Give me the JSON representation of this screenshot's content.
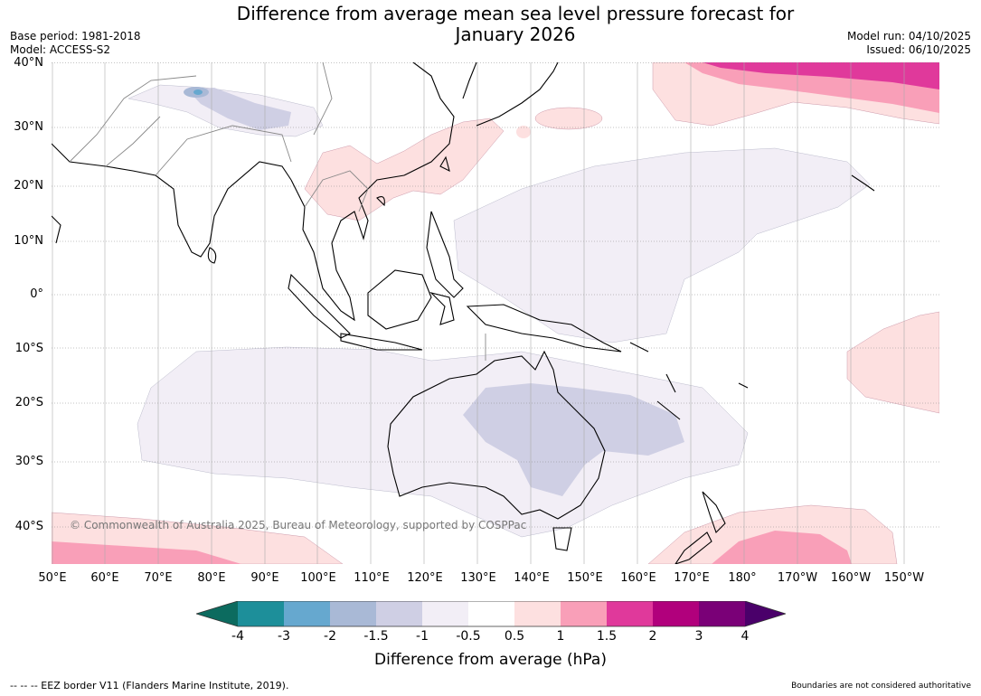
{
  "header": {
    "title_line1": "Difference from average mean sea level pressure forecast for",
    "title_line2": "January 2026",
    "base_period": "Base period: 1981-2018",
    "model": "Model: ACCESS-S2",
    "model_run": "Model run: 04/10/2025",
    "issued": "Issued: 06/10/2025"
  },
  "map": {
    "lat_labels": [
      "40°N",
      "30°N",
      "20°N",
      "10°N",
      "0°",
      "10°S",
      "20°S",
      "30°S",
      "40°S"
    ],
    "lon_labels": [
      "50°E",
      "60°E",
      "70°E",
      "80°E",
      "90°E",
      "100°E",
      "110°E",
      "120°E",
      "130°E",
      "140°E",
      "150°E",
      "160°E",
      "170°E",
      "180°",
      "170°W",
      "160°W",
      "150°W"
    ],
    "copyright": "© Commonwealth of Australia 2025, Bureau of Meteorology, supported by COSPPac"
  },
  "colorbar": {
    "title": "Difference from average (hPa)",
    "ticks": [
      "-4",
      "-3",
      "-2",
      "-1.5",
      "-1",
      "-0.5",
      "0.5",
      "1",
      "1.5",
      "2",
      "3",
      "4"
    ],
    "colors": {
      "below_-4": "#0c6b5f",
      "-4_-3": "#1d8f9a",
      "-3_-2": "#66a8cf",
      "-2_-1.5": "#a9b9d6",
      "-1.5_-1": "#cfcfe4",
      "-1_-0.5": "#f2eef6",
      "-0.5_0.5": "#ffffff",
      "0.5_1": "#fde0e0",
      "1_1.5": "#f99fb8",
      "1.5_2": "#e0399b",
      "2_3": "#b1007c",
      "3_4": "#7a0077",
      "above_4": "#4a006a"
    }
  },
  "footer": {
    "eez": "--  --  -- EEZ border V11 (Flanders Marine Institute, 2019).",
    "boundaries": "Boundaries are not considered authoritative"
  }
}
